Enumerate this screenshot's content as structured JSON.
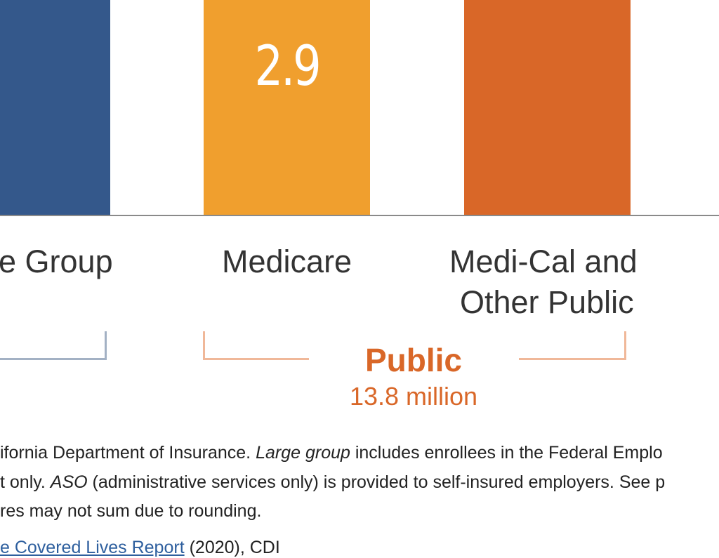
{
  "chart_data": {
    "type": "bar",
    "categories": [
      "Large Group",
      "Medicare",
      "Medi-Cal and Other Public"
    ],
    "visible_category_labels": [
      [
        "e Group"
      ],
      [
        "Medicare"
      ],
      [
        "Medi-Cal and",
        "Other Public"
      ]
    ],
    "values": [
      null,
      2.9,
      null
    ],
    "data_labels": [
      "",
      "2.9",
      ""
    ],
    "colors": [
      "#34588b",
      "#f09f2e",
      "#d96728"
    ],
    "groups": [
      {
        "name": "Public",
        "subtitle": "13.8 million",
        "color": "#d96728",
        "bracket_color": "#f0b899",
        "members": [
          "Medicare",
          "Medi-Cal and Other Public"
        ]
      },
      {
        "name": "",
        "subtitle": "",
        "color": "#34588b",
        "bracket_color": "#a3b1c4",
        "members": [
          "Large Group"
        ]
      }
    ],
    "xlabel": "",
    "ylabel": "",
    "grid": false
  },
  "notes": {
    "line1_a": "ifornia Department of Insurance. ",
    "line1_em": "Large group",
    "line1_b": " includes enrollees in the Federal Emplo",
    "line2_a": "t only. ",
    "line2_em": "ASO",
    "line2_b": " (administrative services only) is provided to self-insured employers. See p",
    "line3": "res may not sum due to rounding.",
    "source_link": "e Covered Lives Report",
    "source_rest": " (2020), CDI"
  }
}
